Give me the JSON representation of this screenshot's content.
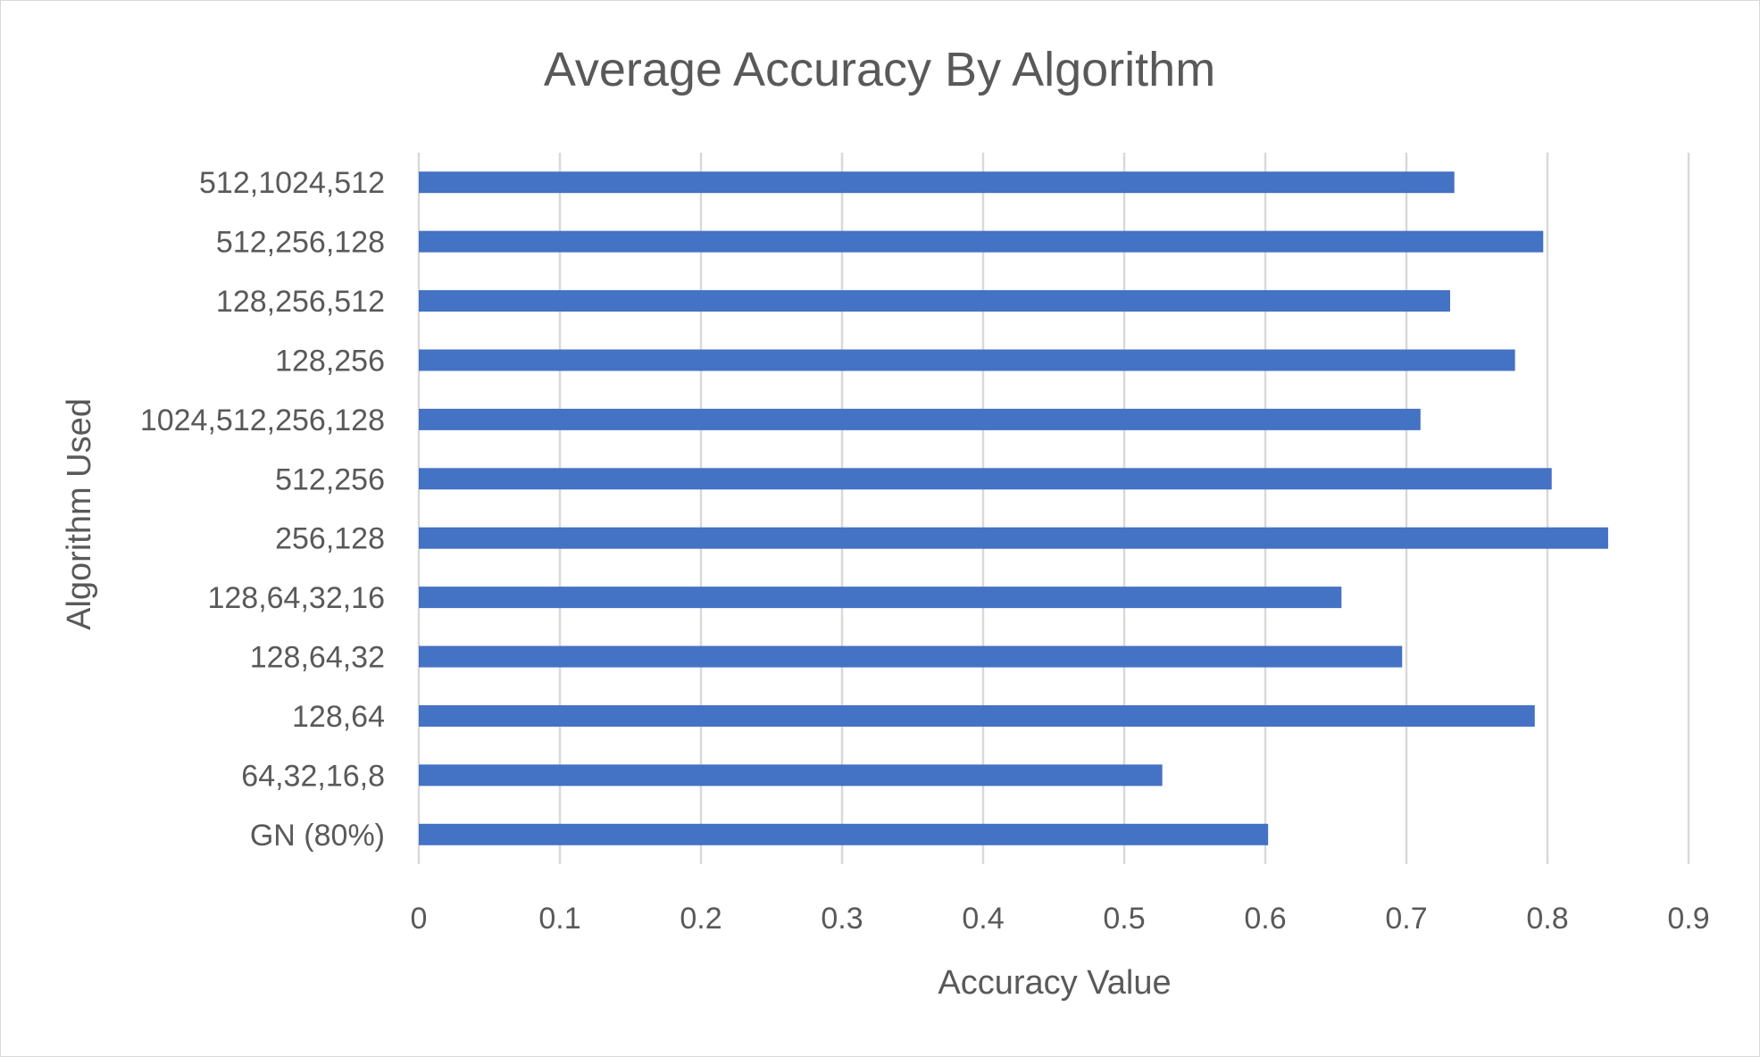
{
  "chart_data": {
    "type": "bar",
    "orientation": "horizontal",
    "title": "Average Accuracy By Algorithm",
    "xlabel": "Accuracy Value",
    "ylabel": "Algorithm Used",
    "categories": [
      "512,1024,512",
      "512,256,128",
      "128,256,512",
      "128,256",
      "1024,512,256,128",
      "512,256",
      "256,128",
      "128,64,32,16",
      "128,64,32",
      "128,64",
      "64,32,16,8",
      "GN (80%)"
    ],
    "values": [
      0.734,
      0.797,
      0.731,
      0.777,
      0.71,
      0.803,
      0.843,
      0.654,
      0.697,
      0.791,
      0.527,
      0.602
    ],
    "xlim": [
      0,
      0.9
    ],
    "xticks": [
      "0",
      "0.1",
      "0.2",
      "0.3",
      "0.4",
      "0.5",
      "0.6",
      "0.7",
      "0.8",
      "0.9"
    ],
    "grid": true,
    "legend": "none",
    "colors": {
      "bar": "#4472c4",
      "grid": "#d9d9d9",
      "text": "#595959"
    }
  }
}
